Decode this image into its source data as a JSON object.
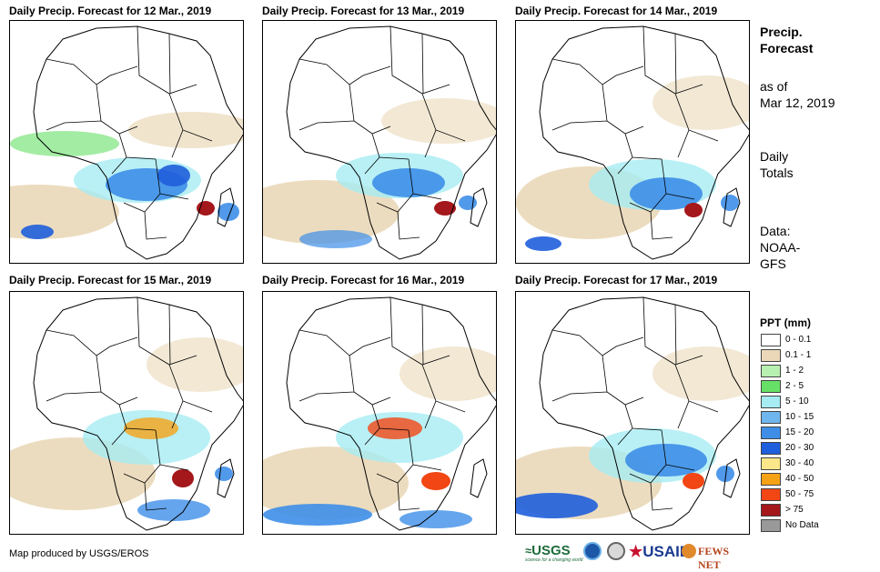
{
  "panels": [
    {
      "title": "Daily Precip. Forecast for 12 Mar., 2019"
    },
    {
      "title": "Daily Precip. Forecast for 13 Mar., 2019"
    },
    {
      "title": "Daily Precip. Forecast for 14 Mar., 2019"
    },
    {
      "title": "Daily Precip. Forecast for 15 Mar., 2019"
    },
    {
      "title": "Daily Precip. Forecast for 16 Mar., 2019"
    },
    {
      "title": "Daily Precip. Forecast for 17 Mar., 2019"
    }
  ],
  "side": {
    "title_line1": "Precip.",
    "title_line2": "Forecast",
    "asof_line1": "as of",
    "asof_line2": "Mar 12, 2019",
    "totals_line1": "Daily",
    "totals_line2": "Totals",
    "data_line1": "Data:",
    "data_line2": "NOAA-",
    "data_line3": "GFS"
  },
  "legend": {
    "title": "PPT (mm)",
    "items": [
      {
        "label": "0 - 0.1",
        "color": "#ffffff"
      },
      {
        "label": "0.1 - 1",
        "color": "#ead8b8"
      },
      {
        "label": "1 - 2",
        "color": "#b7f0b0"
      },
      {
        "label": "2 - 5",
        "color": "#66e066"
      },
      {
        "label": "5 - 10",
        "color": "#a6ecf2"
      },
      {
        "label": "10 - 15",
        "color": "#6fb6ee"
      },
      {
        "label": "15 - 20",
        "color": "#3e8ee8"
      },
      {
        "label": "20 - 30",
        "color": "#1f5edc"
      },
      {
        "label": "30 - 40",
        "color": "#fbe68a"
      },
      {
        "label": "40 - 50",
        "color": "#f5a216"
      },
      {
        "label": "50 - 75",
        "color": "#f24614"
      },
      {
        "label": "> 75",
        "color": "#a4171b"
      },
      {
        "label": "No Data",
        "color": "#999999"
      }
    ]
  },
  "credit": "Map produced by USGS/EROS",
  "logos": {
    "usgs": "USGS",
    "usgs_tagline": "science for a changing world",
    "usaid": "USAID",
    "fewsnet": "FEWS NET"
  }
}
